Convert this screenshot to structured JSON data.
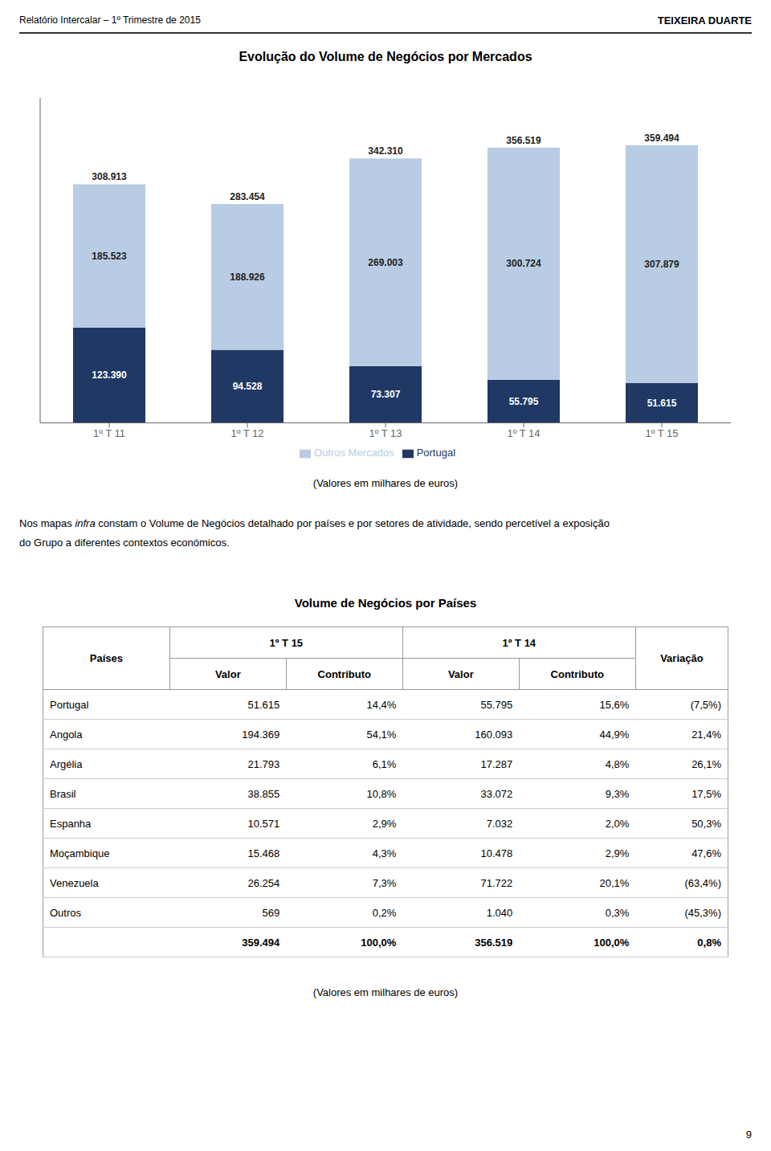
{
  "chart_data": [
    {
      "type": "bar",
      "title": "Evolução do Volume de Negócios por Mercados",
      "categories": [
        "1º T 11",
        "1º T 12",
        "1º T 13",
        "1º T 14",
        "1º T 15"
      ],
      "stacked": true,
      "data_labels": true,
      "tick_labels": "x",
      "grid": false,
      "legend": "bottom",
      "ylim": [
        0,
        420607.98
      ],
      "series": [
        {
          "name": "Portugal",
          "color": "#1f3864",
          "values": [
            123390,
            94528,
            73307,
            55795,
            51615
          ],
          "value_labels": [
            "123.390",
            "94.528",
            "73.307",
            "55.795",
            "51.615"
          ]
        },
        {
          "name": "Outros Mercados",
          "color": "#b8cce4",
          "values": [
            185523,
            188926,
            269003,
            300724,
            307879
          ],
          "value_labels": [
            "185.523",
            "188.926",
            "269.003",
            "300.724",
            "307.879"
          ]
        }
      ],
      "totals": {
        "values": [
          308913,
          283454,
          342310,
          356519,
          359494
        ],
        "value_labels": [
          "308.913",
          "283.454",
          "342.310",
          "356.519",
          "359.494"
        ]
      },
      "annotations": [
        "Relatório Intercalar – 1º Trimestre de 2015",
        "TEIXEIRA DUARTE",
        "(Valores em milhares de euros)",
        [
          "Nos mapas ",
          "infra",
          " constam o Volume de Negócios detalhado por países e por setores de atividade, sendo percetível a exposição"
        ],
        "do Grupo a diferentes contextos económicos.",
        "9"
      ]
    },
    {
      "type": "table",
      "title": "Volume de Negócios por Países",
      "header": [
        "Países",
        "1º T 15",
        "1º T 14",
        "Variação"
      ],
      "subheader": [
        "Valor",
        "Contributo",
        "Valor",
        "Contributo"
      ],
      "rows": [
        [
          "Portugal",
          "51.615",
          "14,4%",
          "55.795",
          "15,6%",
          "(7,5%)"
        ],
        [
          "Angola",
          "194.369",
          "54,1%",
          "160.093",
          "44,9%",
          "21,4%"
        ],
        [
          "Argélia",
          "21.793",
          "6,1%",
          "17.287",
          "4,8%",
          "26,1%"
        ],
        [
          "Brasil",
          "38.855",
          "10,8%",
          "33.072",
          "9,3%",
          "17,5%"
        ],
        [
          "Espanha",
          "10.571",
          "2,9%",
          "7.032",
          "2,0%",
          "50,3%"
        ],
        [
          "Moçambique",
          "15.468",
          "4,3%",
          "10.478",
          "2,9%",
          "47,6%"
        ],
        [
          "Venezuela",
          "26.254",
          "7,3%",
          "71.722",
          "20,1%",
          "(63,4%)"
        ],
        [
          "Outros",
          "569",
          "0,2%",
          "1.040",
          "0,3%",
          "(45,3%)"
        ],
        [
          null,
          "359.494",
          "100,0%",
          "356.519",
          "100,0%",
          "0,8%"
        ]
      ],
      "annotations": [
        "(Valores em milhares de euros)"
      ]
    }
  ]
}
